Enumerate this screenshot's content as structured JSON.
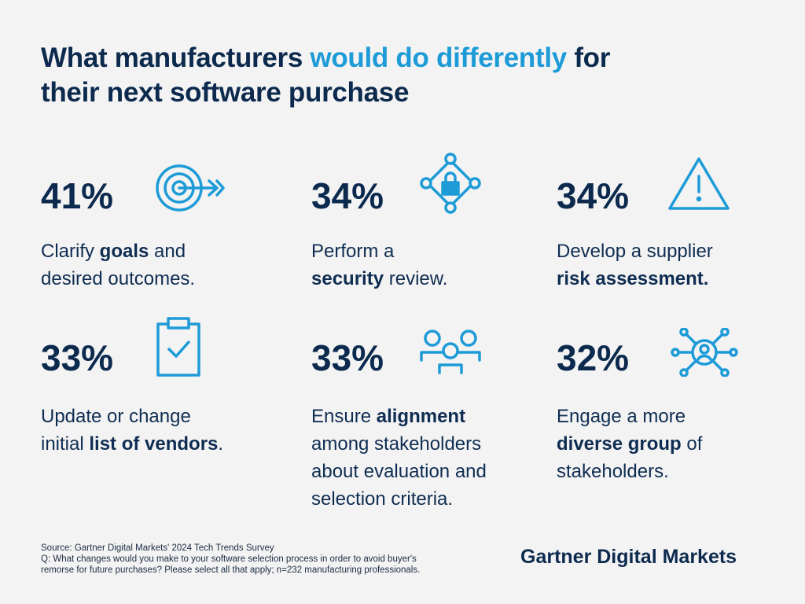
{
  "header": {
    "title_lines": [
      [
        {
          "text": "What manufacturers "
        },
        {
          "text": "would do differently",
          "highlight": true
        },
        {
          "text": " for"
        }
      ],
      [
        {
          "text": "their next software purchase"
        }
      ]
    ]
  },
  "items": [
    {
      "percent": "41%",
      "lines": [
        [
          {
            "text": "Clarify "
          },
          {
            "text": "goals",
            "bold": true
          },
          {
            "text": " and"
          }
        ],
        [
          {
            "text": "desired outcomes."
          }
        ]
      ]
    },
    {
      "percent": "34%",
      "lines": [
        [
          {
            "text": "Perform a"
          }
        ],
        [
          {
            "text": "security",
            "bold": true
          },
          {
            "text": " review."
          }
        ]
      ]
    },
    {
      "percent": "34%",
      "lines": [
        [
          {
            "text": "Develop a supplier"
          }
        ],
        [
          {
            "text": "risk assessment.",
            "bold": true
          }
        ]
      ]
    },
    {
      "percent": "33%",
      "lines": [
        [
          {
            "text": "Update or change"
          }
        ],
        [
          {
            "text": "initial "
          },
          {
            "text": "list of vendors",
            "bold": true
          },
          {
            "text": "."
          }
        ]
      ]
    },
    {
      "percent": "33%",
      "lines": [
        [
          {
            "text": "Ensure "
          },
          {
            "text": "alignment",
            "bold": true
          }
        ],
        [
          {
            "text": "among stakeholders"
          }
        ],
        [
          {
            "text": "about evaluation and"
          }
        ],
        [
          {
            "text": "selection criteria."
          }
        ]
      ]
    },
    {
      "percent": "32%",
      "lines": [
        [
          {
            "text": "Engage a more"
          }
        ],
        [
          {
            "text": "diverse group",
            "bold": true
          },
          {
            "text": " of"
          }
        ],
        [
          {
            "text": "stakeholders."
          }
        ]
      ]
    }
  ],
  "footer": {
    "source": "Source: Gartner Digital Markets' 2024 Tech Trends Survey",
    "question_lines": [
      "Q: What changes would you make to your software selection process in order to avoid buyer's",
      "remorse for future purchases? Please select all that apply; n=232 manufacturing professionals."
    ],
    "brand": "Gartner Digital Markets"
  }
}
